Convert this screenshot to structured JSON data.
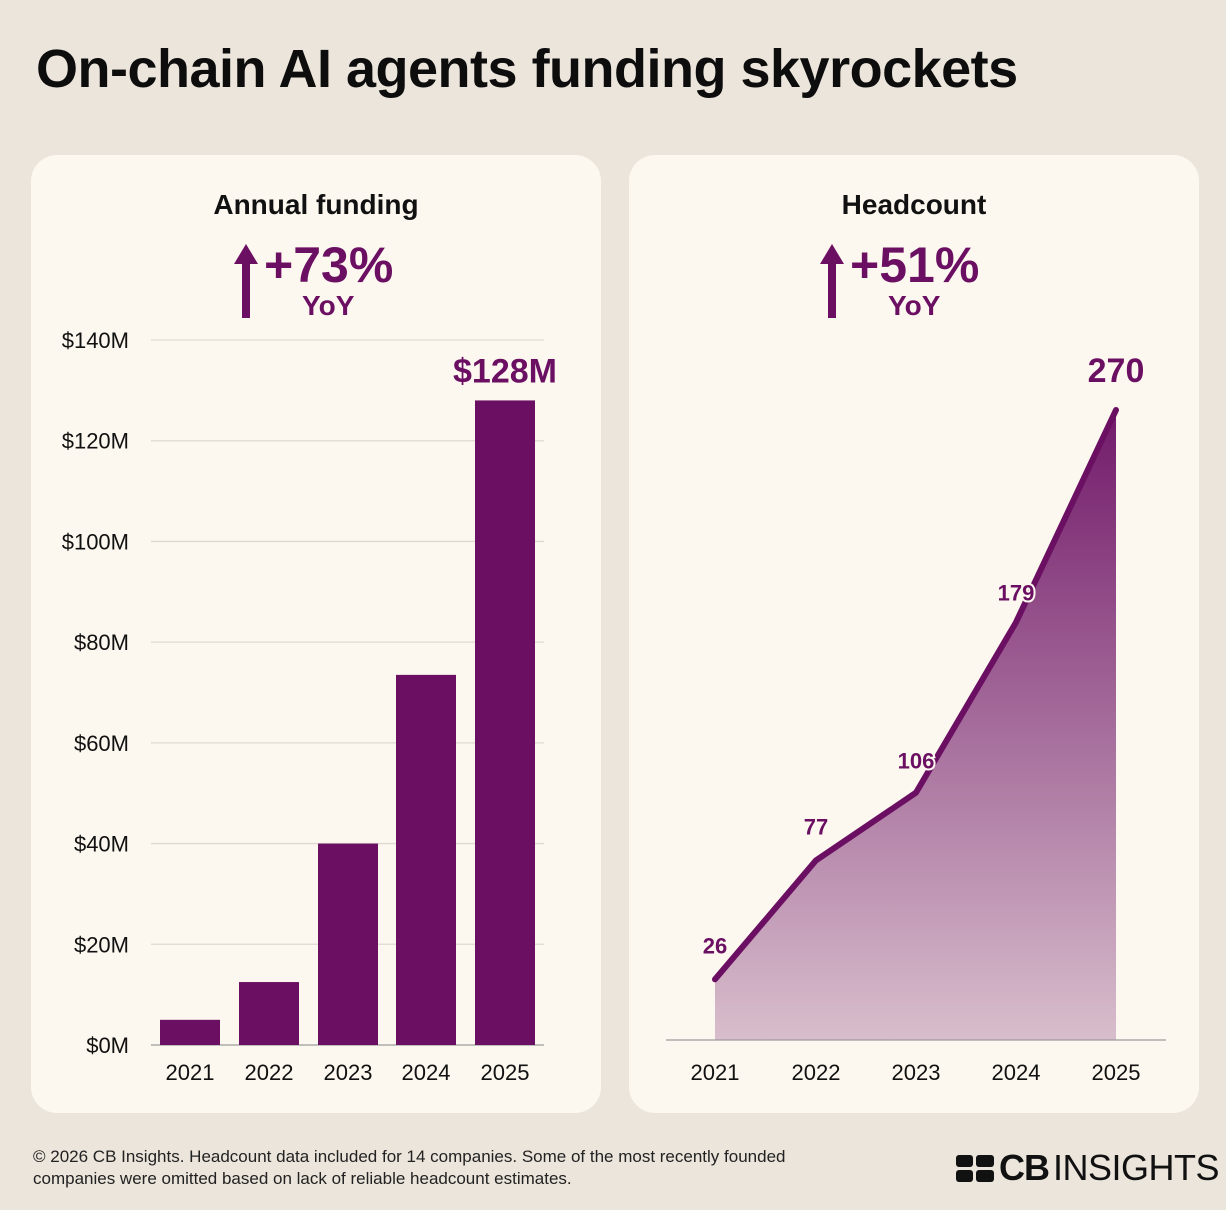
{
  "title": "On-chain AI agents funding skyrockets",
  "colors": {
    "accent": "#6b0f63",
    "background": "#ebe5db",
    "panel": "#fcf8ef"
  },
  "left_panel": {
    "title": "Annual funding",
    "growth": "+73%",
    "growth_unit": "YoY"
  },
  "right_panel": {
    "title": "Headcount",
    "growth": "+51%",
    "growth_unit": "YoY"
  },
  "chart_data": [
    {
      "type": "bar",
      "title": "Annual funding",
      "categories": [
        "2021",
        "2022",
        "2023",
        "2024",
        "2025"
      ],
      "values": [
        5,
        12.5,
        40,
        73.5,
        128
      ],
      "value_label": "$128M",
      "ylim": [
        0,
        140
      ],
      "yticks": [
        "$0M",
        "$20M",
        "$40M",
        "$60M",
        "$80M",
        "$100M",
        "$120M",
        "$140M"
      ],
      "grid": true
    },
    {
      "type": "area",
      "title": "Headcount",
      "categories": [
        "2021",
        "2022",
        "2023",
        "2024",
        "2025"
      ],
      "values": [
        26,
        77,
        106,
        179,
        270
      ],
      "labels": [
        "26",
        "77",
        "106",
        "179",
        "270"
      ],
      "grid": false
    }
  ],
  "footer": {
    "line1": "© 2026 CB Insights. Headcount data included for 14 companies. Some of the most recently founded",
    "line2": "companies were omitted based on lack of reliable headcount estimates."
  },
  "logo": {
    "cb": "CB",
    "insights": "INSIGHTS"
  }
}
